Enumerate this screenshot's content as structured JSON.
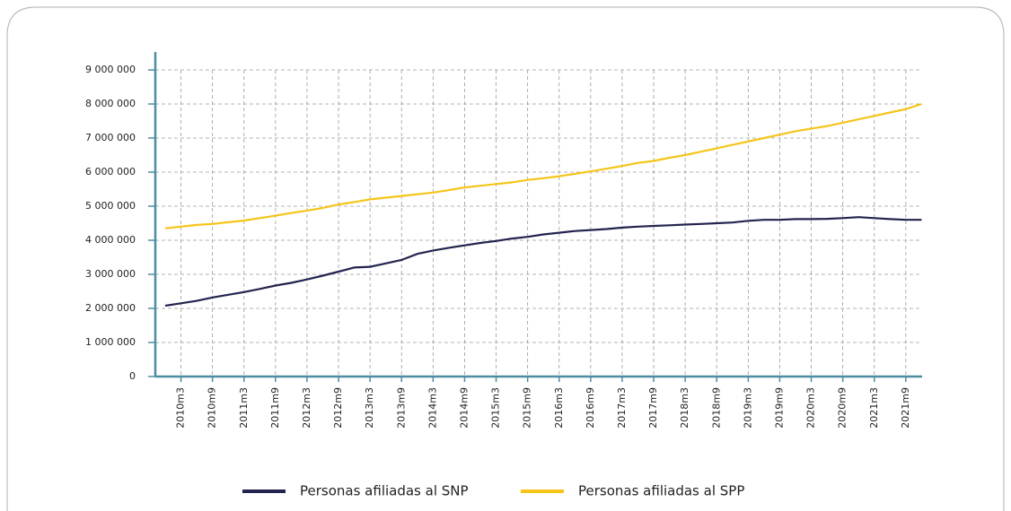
{
  "chart_data": {
    "type": "line",
    "categories": [
      null,
      "2010m3",
      null,
      "2010m9",
      null,
      "2011m3",
      null,
      "2011m9",
      null,
      "2012m3",
      null,
      "2012m9",
      null,
      "2013m3",
      null,
      "2013m9",
      null,
      "2014m3",
      null,
      "2014m9",
      null,
      "2015m3",
      null,
      "2015m9",
      null,
      "2016m3",
      null,
      "2016m9",
      null,
      "2017m3",
      null,
      "2017m9",
      null,
      "2018m3",
      null,
      "2018m9",
      null,
      "2019m3",
      null,
      "2019m9",
      null,
      "2020m3",
      null,
      "2020m9",
      null,
      "2021m3",
      null,
      "2021m9",
      null
    ],
    "series": [
      {
        "name": "Personas afiliadas al SNP",
        "color": "#23234f",
        "values": [
          2080000,
          2150000,
          2220000,
          2320000,
          2400000,
          2480000,
          2570000,
          2670000,
          2750000,
          2850000,
          2960000,
          3080000,
          3200000,
          3220000,
          3320000,
          3420000,
          3600000,
          3700000,
          3780000,
          3850000,
          3920000,
          3980000,
          4050000,
          4100000,
          4170000,
          4220000,
          4270000,
          4300000,
          4330000,
          4370000,
          4400000,
          4420000,
          4440000,
          4460000,
          4480000,
          4500000,
          4520000,
          4570000,
          4600000,
          4600000,
          4620000,
          4620000,
          4630000,
          4650000,
          4680000,
          4650000,
          4620000,
          4600000,
          4600000
        ]
      },
      {
        "name": "Personas afiliadas al SPP",
        "color": "#f5c518",
        "values": [
          4350000,
          4400000,
          4450000,
          4480000,
          4530000,
          4580000,
          4650000,
          4720000,
          4800000,
          4870000,
          4950000,
          5050000,
          5120000,
          5200000,
          5250000,
          5300000,
          5350000,
          5400000,
          5470000,
          5550000,
          5600000,
          5650000,
          5700000,
          5770000,
          5820000,
          5880000,
          5950000,
          6020000,
          6100000,
          6180000,
          6270000,
          6330000,
          6420000,
          6500000,
          6600000,
          6700000,
          6800000,
          6900000,
          7000000,
          7100000,
          7200000,
          7280000,
          7350000,
          7450000,
          7550000,
          7650000,
          7750000,
          7850000,
          8000000
        ]
      }
    ],
    "ylim": [
      0,
      9000000
    ],
    "yticks": [
      0,
      {
        "value": 1000000,
        "label": "1 000 000"
      },
      {
        "value": 2000000,
        "label": "2 000 000"
      },
      {
        "value": 3000000,
        "label": "3 000 000"
      },
      {
        "value": 4000000,
        "label": "4 000 000"
      },
      {
        "value": 5000000,
        "label": "5 000 000"
      },
      {
        "value": 6000000,
        "label": "6 000 000"
      },
      {
        "value": 7000000,
        "label": "7 000 000"
      },
      {
        "value": 8000000,
        "label": "8 000 000"
      },
      {
        "value": 9000000,
        "label": "9 000 000"
      }
    ],
    "grid": true,
    "legend": "bottom"
  }
}
